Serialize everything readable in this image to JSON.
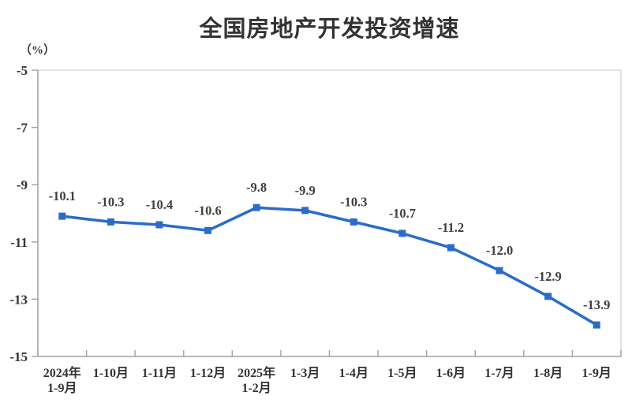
{
  "page": {
    "background_color": "#ffffff"
  },
  "chart_data": {
    "type": "line",
    "title": "全国房地产开发投资增速",
    "unit_label": "（%）",
    "series_name": "全国房地产开发投资增速",
    "categories": [
      "2024年\n1-9月",
      "1-10月",
      "1-11月",
      "1-12月",
      "2025年\n1-2月",
      "1-3月",
      "1-4月",
      "1-5月",
      "1-6月",
      "1-7月",
      "1-8月",
      "1-9月"
    ],
    "values": [
      -10.1,
      -10.3,
      -10.4,
      -10.6,
      -9.8,
      -9.9,
      -10.3,
      -10.7,
      -11.2,
      -12.0,
      -12.9,
      -13.9
    ],
    "data_labels": [
      "-10.1",
      "-10.3",
      "-10.4",
      "-10.6",
      "-9.8",
      "-9.9",
      "-10.3",
      "-10.7",
      "-11.2",
      "-12.0",
      "-12.9",
      "-13.9"
    ],
    "ylim": [
      -15,
      -5
    ],
    "yticks": [
      -5,
      -7,
      -9,
      -11,
      -13,
      -15
    ],
    "ytick_labels": [
      "-5",
      "-7",
      "-9",
      "-11",
      "-13",
      "-15"
    ],
    "grid": false,
    "legend_position": "none",
    "colors": {
      "line": "#2a6cc8",
      "marker": "#2a6cc8",
      "data_label_text": "#404040",
      "axis_text": "#333333",
      "axis_line": "#a6a6a6",
      "plot_border": "#d9d9d9"
    }
  }
}
